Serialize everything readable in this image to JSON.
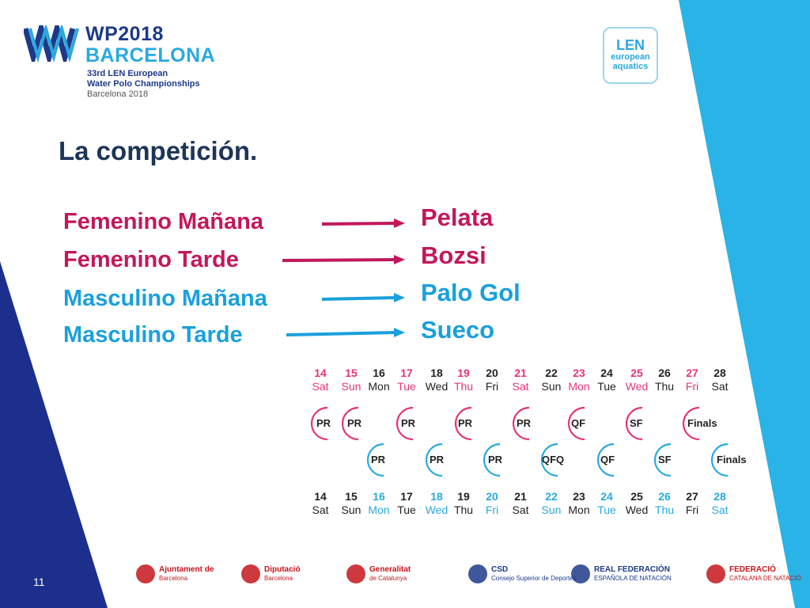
{
  "header": {
    "event_title": "WP2018",
    "event_city": "BARCELONA",
    "event_line1": "33rd LEN European",
    "event_line2": "Water Polo Championships",
    "event_line3": "Barcelona 2018",
    "len_logo_word": "LEN",
    "len_logo_line1": "european",
    "len_logo_line2": "aquatics"
  },
  "slide": {
    "title": "La competición.",
    "page_number": "11"
  },
  "assignments": [
    {
      "category": "Femenino Mañana",
      "venue": "Pelata",
      "color": "#c2185b"
    },
    {
      "category": "Femenino Tarde",
      "venue": "Bozsi",
      "color": "#c2185b"
    },
    {
      "category": "Masculino Mañana",
      "venue": "Palo Gol",
      "color": "#1aa0dc"
    },
    {
      "category": "Masculino Tarde",
      "venue": "Sueco",
      "color": "#1aa0dc"
    }
  ],
  "calendar": {
    "top_dates": [
      {
        "num": "14",
        "day": "Sat",
        "tone": "pink"
      },
      {
        "num": "15",
        "day": "Sun",
        "tone": "pink"
      },
      {
        "num": "16",
        "day": "Mon",
        "tone": "dark"
      },
      {
        "num": "17",
        "day": "Tue",
        "tone": "pink"
      },
      {
        "num": "18",
        "day": "Wed",
        "tone": "dark"
      },
      {
        "num": "19",
        "day": "Thu",
        "tone": "pink"
      },
      {
        "num": "20",
        "day": "Fri",
        "tone": "dark"
      },
      {
        "num": "21",
        "day": "Sat",
        "tone": "pink"
      },
      {
        "num": "22",
        "day": "Sun",
        "tone": "dark"
      },
      {
        "num": "23",
        "day": "Mon",
        "tone": "pink"
      },
      {
        "num": "24",
        "day": "Tue",
        "tone": "dark"
      },
      {
        "num": "25",
        "day": "Wed",
        "tone": "pink"
      },
      {
        "num": "26",
        "day": "Thu",
        "tone": "dark"
      },
      {
        "num": "27",
        "day": "Fri",
        "tone": "pink"
      },
      {
        "num": "28",
        "day": "Sat",
        "tone": "dark"
      }
    ],
    "women_stages": [
      "PR",
      "PR",
      "PR",
      "PR",
      "PR",
      "QF",
      "SF",
      "Finals"
    ],
    "men_stages": [
      "PR",
      "PR",
      "PR",
      "QFQ",
      "QF",
      "SF",
      "Finals"
    ],
    "bottom_dates": [
      {
        "num": "14",
        "day": "Sat",
        "tone": "dark"
      },
      {
        "num": "15",
        "day": "Sun",
        "tone": "dark"
      },
      {
        "num": "16",
        "day": "Mon",
        "tone": "blue"
      },
      {
        "num": "17",
        "day": "Tue",
        "tone": "dark"
      },
      {
        "num": "18",
        "day": "Wed",
        "tone": "blue"
      },
      {
        "num": "19",
        "day": "Thu",
        "tone": "dark"
      },
      {
        "num": "20",
        "day": "Fri",
        "tone": "blue"
      },
      {
        "num": "21",
        "day": "Sat",
        "tone": "dark"
      },
      {
        "num": "22",
        "day": "Sun",
        "tone": "blue"
      },
      {
        "num": "23",
        "day": "Mon",
        "tone": "dark"
      },
      {
        "num": "24",
        "day": "Tue",
        "tone": "blue"
      },
      {
        "num": "25",
        "day": "Wed",
        "tone": "dark"
      },
      {
        "num": "26",
        "day": "Thu",
        "tone": "blue"
      },
      {
        "num": "27",
        "day": "Fri",
        "tone": "dark"
      },
      {
        "num": "28",
        "day": "Sat",
        "tone": "blue"
      }
    ]
  },
  "footer_logos": [
    {
      "name": "ajuntament-barcelona-logo",
      "line1": "Ajuntament de",
      "line2": "Barcelona"
    },
    {
      "name": "diputacio-barcelona-logo",
      "line1": "Diputació",
      "line2": "Barcelona"
    },
    {
      "name": "generalitat-catalunya-logo",
      "line1": "Generalitat",
      "line2": "de Catalunya"
    },
    {
      "name": "csd-logo",
      "line1": "CSD",
      "line2": "Consejo Superior de Deportes"
    },
    {
      "name": "rfen-logo",
      "line1": "REAL FEDERACIÓN",
      "line2": "ESPAÑOLA DE NATACIÓN"
    },
    {
      "name": "fcn-logo",
      "line1": "FEDERACIÓ",
      "line2": "CATALANA DE NATACIÓ"
    }
  ],
  "colors": {
    "navy": "#1d2f8c",
    "sky": "#29b3e6",
    "pink": "#e4347a",
    "blue": "#29a9e0"
  }
}
